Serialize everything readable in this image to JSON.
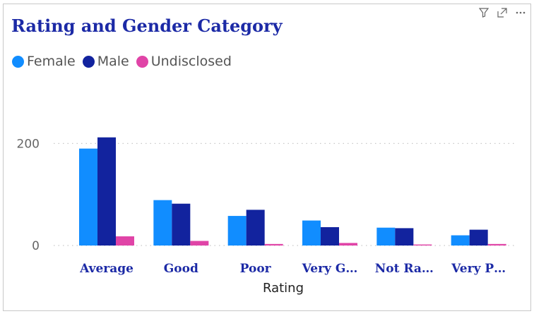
{
  "toolbar": {
    "icons": [
      "filter-icon",
      "expand-icon",
      "more-options-icon"
    ]
  },
  "chart_data": {
    "type": "bar",
    "title": "Rating and Gender Category",
    "categories": [
      "Average",
      "Good",
      "Poor",
      "Very G…",
      "Not Ra…",
      "Very P…"
    ],
    "series": [
      {
        "name": "Female",
        "color": "#118dff",
        "values": [
          190,
          89,
          58,
          49,
          35,
          20
        ]
      },
      {
        "name": "Male",
        "color": "#12239e",
        "values": [
          212,
          82,
          70,
          36,
          34,
          31
        ]
      },
      {
        "name": "Undisclosed",
        "color": "#e044a7",
        "values": [
          18,
          9,
          3,
          5,
          2,
          3
        ]
      }
    ],
    "xlabel": "Rating",
    "ylabel": "",
    "ylim": [
      0,
      260
    ],
    "yticks": [
      0,
      200
    ],
    "ytick_labels": [
      "0",
      "200"
    ],
    "grid": true,
    "legend": "top-left"
  }
}
